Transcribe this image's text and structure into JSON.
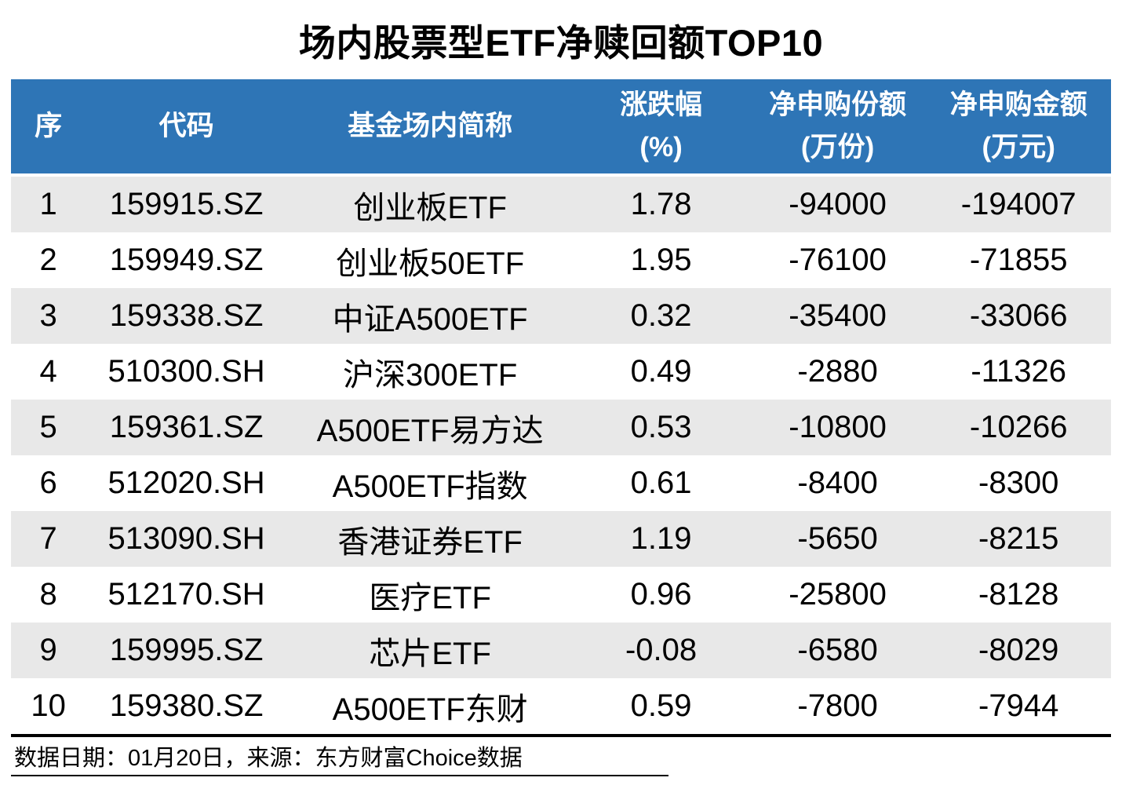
{
  "title": "场内股票型ETF净赎回额TOP10",
  "colors": {
    "header_bg": "#2e75b6",
    "header_text": "#ffffff",
    "row_stripe": "#e8e8e8",
    "body_text": "#000000"
  },
  "header": {
    "cols": [
      {
        "l1": "序",
        "l2": ""
      },
      {
        "l1": "代码",
        "l2": ""
      },
      {
        "l1": "基金场内简称",
        "l2": ""
      },
      {
        "l1": "涨跌幅",
        "l2": "(%)"
      },
      {
        "l1": "净申购份额",
        "l2": "(万份)"
      },
      {
        "l1": "净申购金额",
        "l2": "(万元)"
      }
    ]
  },
  "chart_data": {
    "type": "table",
    "title": "场内股票型ETF净赎回额TOP10",
    "columns": [
      "序",
      "代码",
      "基金场内简称",
      "涨跌幅(%)",
      "净申购份额(万份)",
      "净申购金额(万元)"
    ],
    "rows": [
      [
        1,
        "159915.SZ",
        "创业板ETF",
        1.78,
        -94000,
        -194007
      ],
      [
        2,
        "159949.SZ",
        "创业板50ETF",
        1.95,
        -76100,
        -71855
      ],
      [
        3,
        "159338.SZ",
        "中证A500ETF",
        0.32,
        -35400,
        -33066
      ],
      [
        4,
        "510300.SH",
        "沪深300ETF",
        0.49,
        -2880,
        -11326
      ],
      [
        5,
        "159361.SZ",
        "A500ETF易方达",
        0.53,
        -10800,
        -10266
      ],
      [
        6,
        "512020.SH",
        "A500ETF指数",
        0.61,
        -8400,
        -8300
      ],
      [
        7,
        "513090.SH",
        "香港证券ETF",
        1.19,
        -5650,
        -8215
      ],
      [
        8,
        "512170.SH",
        "医疗ETF",
        0.96,
        -25800,
        -8128
      ],
      [
        9,
        "159995.SZ",
        "芯片ETF",
        -0.08,
        -6580,
        -8029
      ],
      [
        10,
        "159380.SZ",
        "A500ETF东财",
        0.59,
        -7800,
        -7944
      ]
    ]
  },
  "footer": {
    "text": "数据日期：01月20日，来源：东方财富Choice数据"
  }
}
